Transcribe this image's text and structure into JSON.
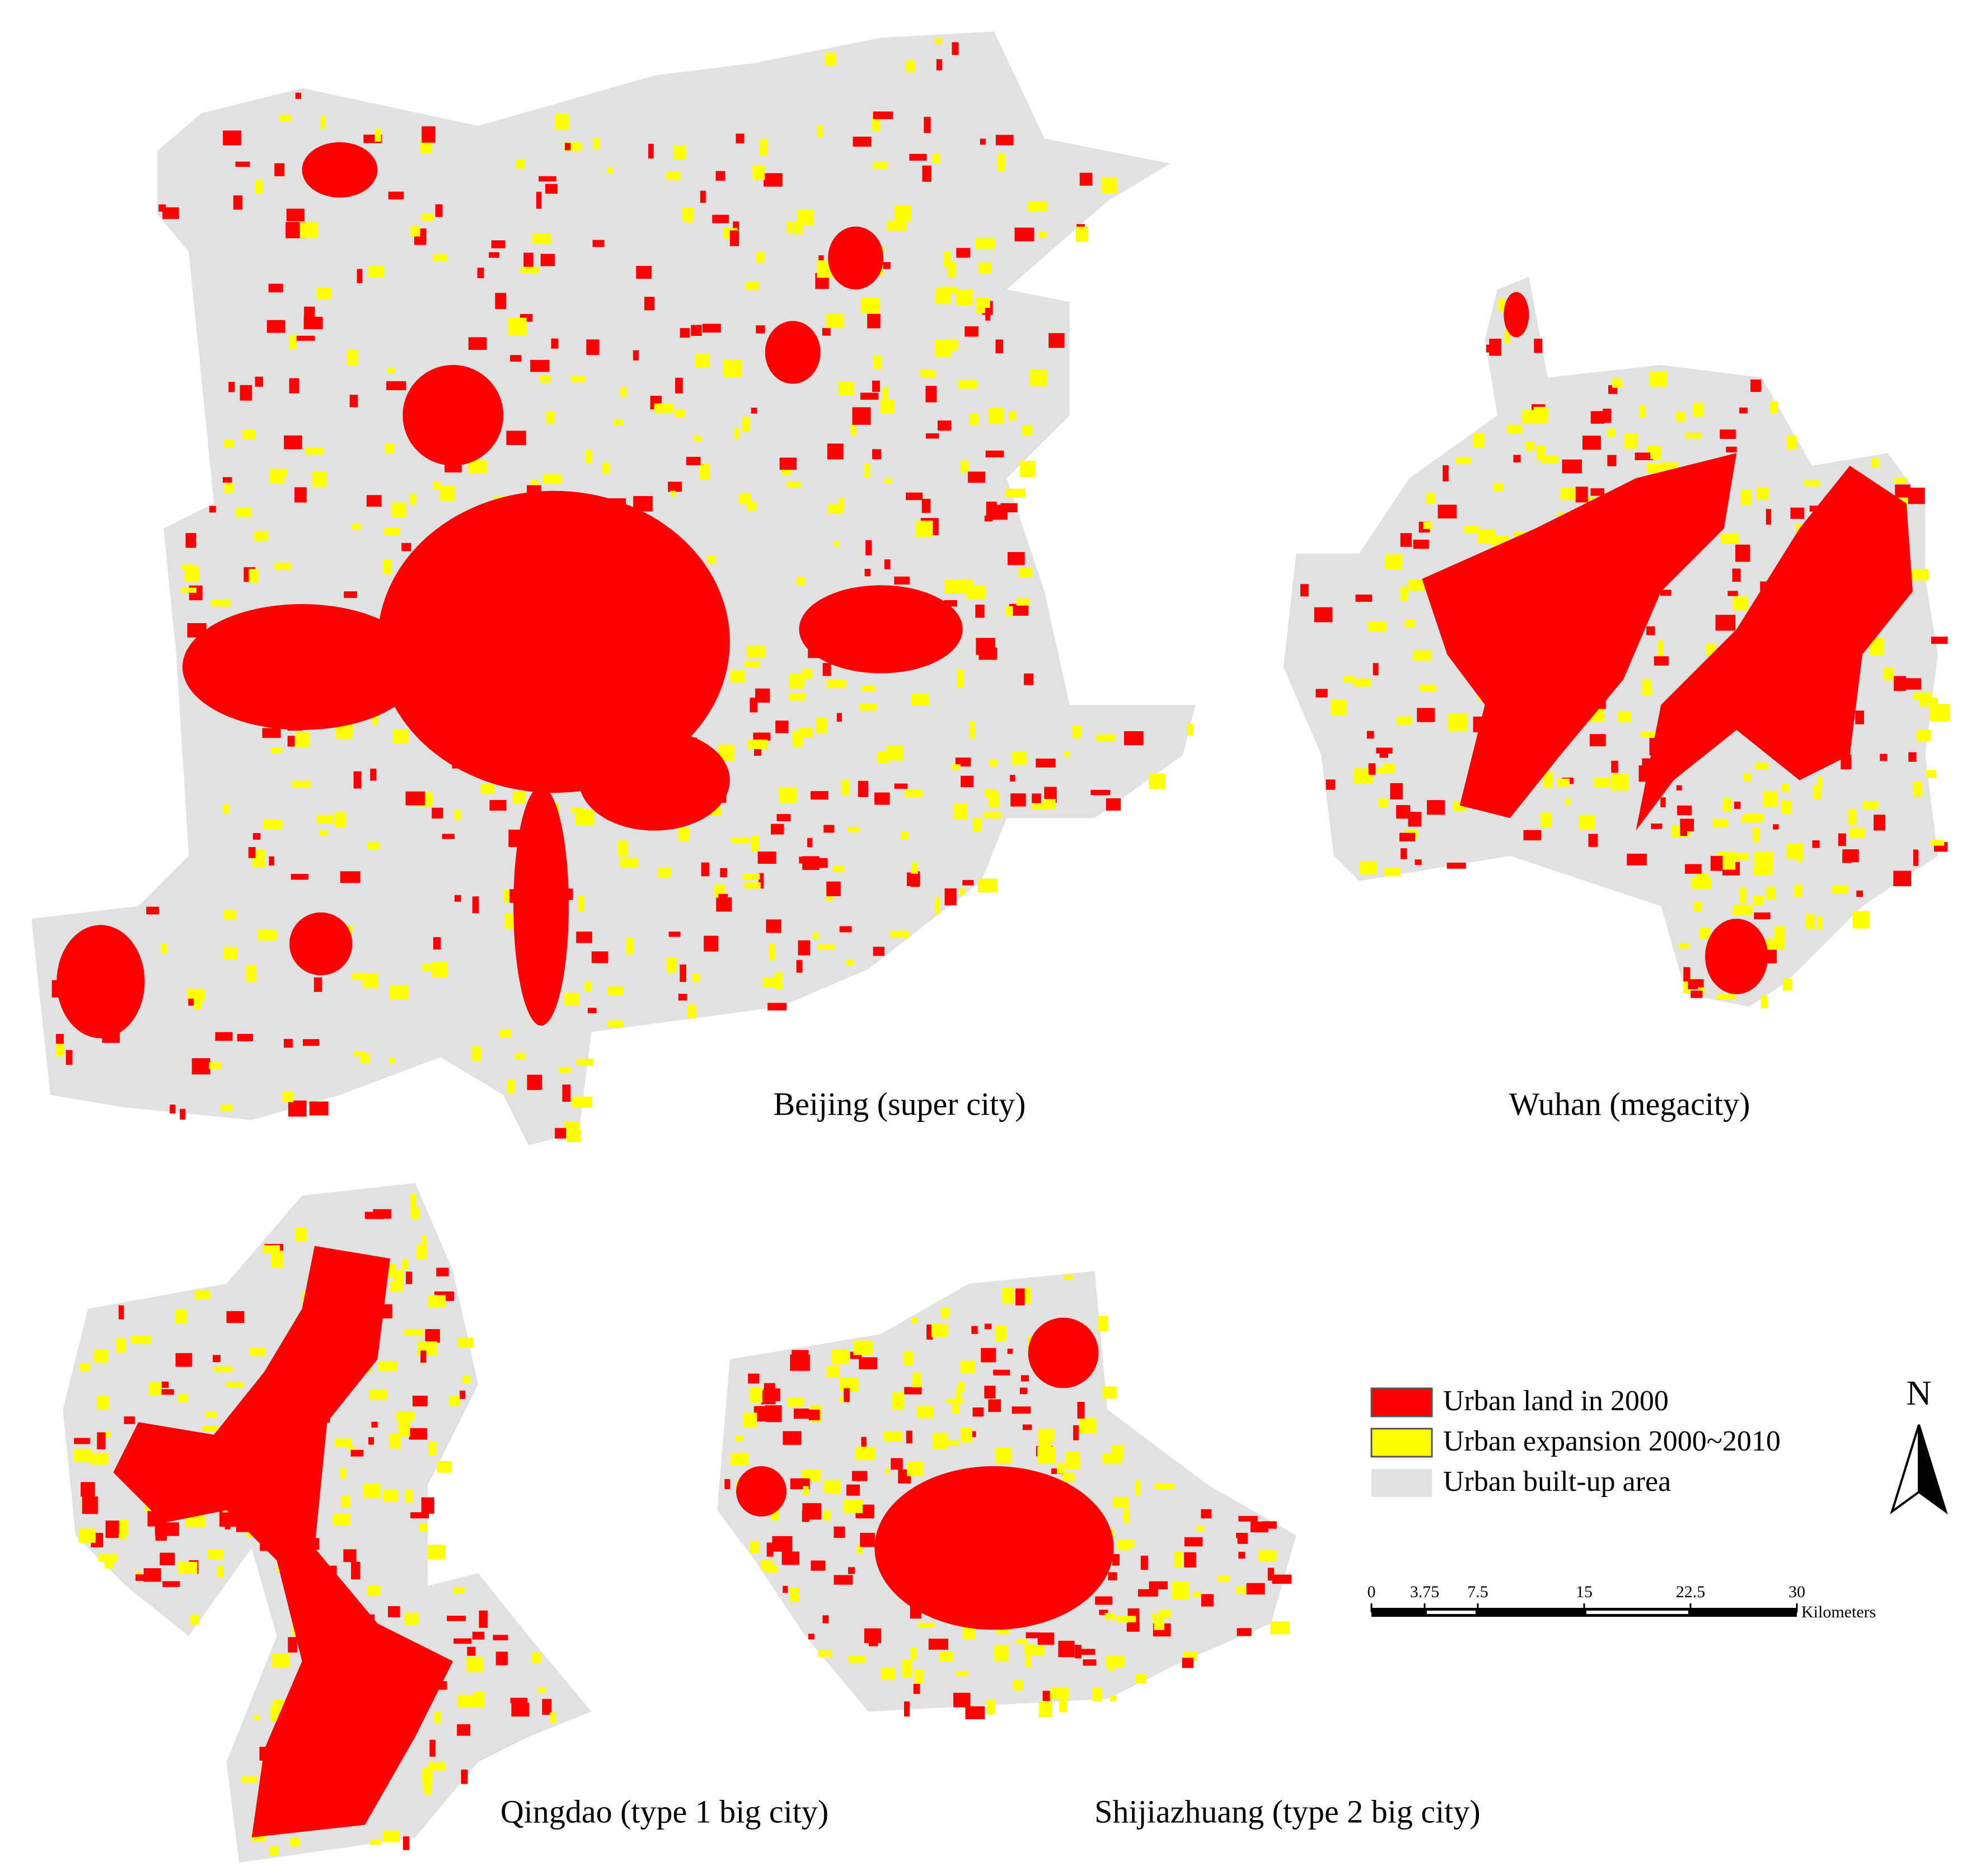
{
  "map": {
    "cities": [
      {
        "label": "Beijing (super city)"
      },
      {
        "label": "Wuhan (megacity)"
      },
      {
        "label": "Qingdao (type 1 big city)"
      },
      {
        "label": "Shijiazhuang (type 2 big city)"
      }
    ],
    "legend": [
      {
        "label": "Urban land in 2000",
        "color": "#ff0000"
      },
      {
        "label": "Urban expansion 2000~2010",
        "color": "#ffff00"
      },
      {
        "label": "Urban built-up area",
        "color": "#e1e1e1"
      }
    ],
    "north_label": "N",
    "scale_bar": {
      "ticks": [
        0,
        3.75,
        7.5,
        15,
        22.5,
        30
      ],
      "unit": "Kilometers"
    }
  }
}
